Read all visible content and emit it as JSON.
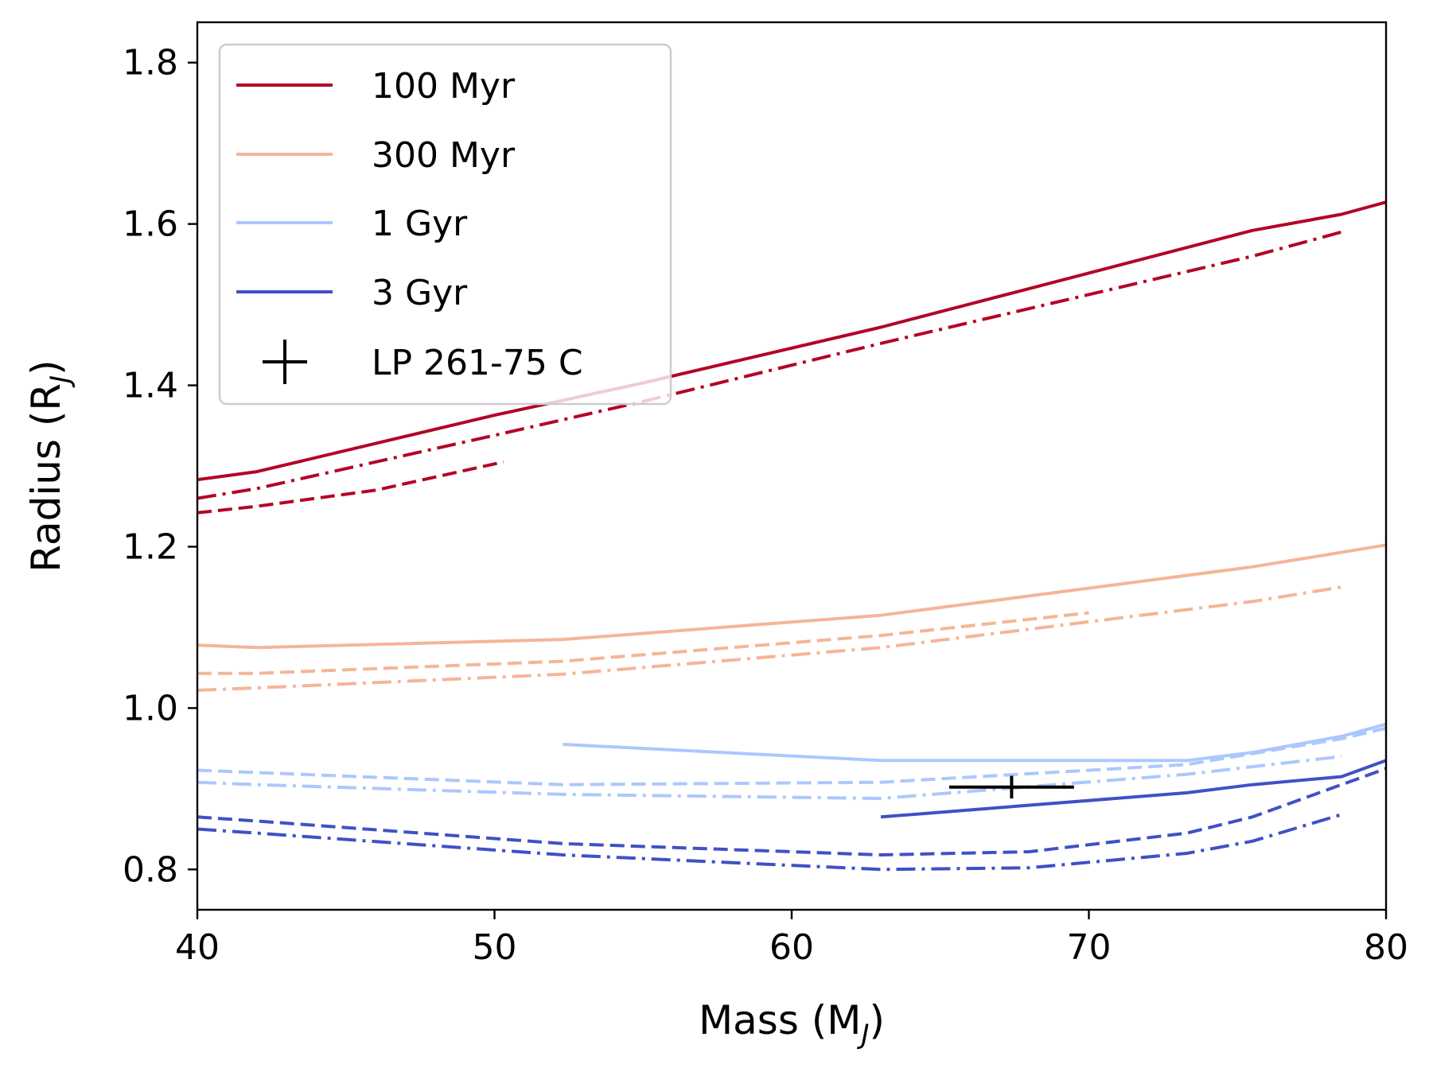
{
  "chart_data": {
    "type": "line",
    "title": "",
    "xlabel": "Mass (M",
    "xlabel_sub": "J",
    "xlabel_close": ")",
    "ylabel": "Radius (R",
    "ylabel_sub": "J",
    "ylabel_close": ")",
    "xlim": [
      40,
      80
    ],
    "ylim": [
      0.75,
      1.85
    ],
    "xticks": [
      40,
      50,
      60,
      70,
      80
    ],
    "xtick_labels": [
      "40",
      "50",
      "60",
      "70",
      "80"
    ],
    "yticks": [
      0.8,
      1.0,
      1.2,
      1.4,
      1.6,
      1.8
    ],
    "ytick_labels": [
      "0.8",
      "1.0",
      "1.2",
      "1.4",
      "1.6",
      "1.8"
    ],
    "grid": false,
    "legend": {
      "location": "upper-left",
      "entries": [
        {
          "label": "100 Myr",
          "color": "#b40426",
          "marker": "line"
        },
        {
          "label": "300 Myr",
          "color": "#f5b597",
          "marker": "line"
        },
        {
          "label": "1 Gyr",
          "color": "#abc8fd",
          "marker": "line"
        },
        {
          "label": "3 Gyr",
          "color": "#3f51c5",
          "marker": "line"
        },
        {
          "label": "LP 261-75 C",
          "color": "#000000",
          "marker": "errorbar"
        }
      ]
    },
    "series": [
      {
        "name": "100 Myr solid",
        "age": "100 Myr",
        "style": "solid",
        "color": "#b40426",
        "x": [
          40,
          42,
          50,
          55,
          63,
          75.5,
          78.5,
          80
        ],
        "y": [
          1.283,
          1.293,
          1.363,
          1.403,
          1.472,
          1.592,
          1.612,
          1.627
        ]
      },
      {
        "name": "100 Myr dash-dot",
        "age": "100 Myr",
        "style": "dashdot",
        "color": "#b40426",
        "x": [
          40,
          42,
          50,
          55,
          63,
          75.5,
          78.5
        ],
        "y": [
          1.26,
          1.272,
          1.338,
          1.38,
          1.452,
          1.56,
          1.59
        ]
      },
      {
        "name": "100 Myr dashed",
        "age": "100 Myr",
        "style": "dashed",
        "color": "#b40426",
        "x": [
          40,
          42,
          46,
          50.3
        ],
        "y": [
          1.242,
          1.25,
          1.27,
          1.305
        ]
      },
      {
        "name": "300 Myr solid",
        "age": "300 Myr",
        "style": "solid",
        "color": "#f5b597",
        "x": [
          40,
          42,
          52.3,
          63,
          75.5,
          80
        ],
        "y": [
          1.078,
          1.075,
          1.085,
          1.115,
          1.175,
          1.202
        ]
      },
      {
        "name": "300 Myr dashed",
        "age": "300 Myr",
        "style": "dashed",
        "color": "#f5b597",
        "x": [
          40,
          42,
          52.3,
          63,
          70
        ],
        "y": [
          1.043,
          1.043,
          1.058,
          1.09,
          1.118
        ]
      },
      {
        "name": "300 Myr dash-dot",
        "age": "300 Myr",
        "style": "dashdot",
        "color": "#f5b597",
        "x": [
          40,
          42,
          52.3,
          63,
          75.5,
          78.5
        ],
        "y": [
          1.022,
          1.025,
          1.042,
          1.075,
          1.132,
          1.15
        ]
      },
      {
        "name": "1 Gyr solid",
        "age": "1 Gyr",
        "style": "solid",
        "color": "#abc8fd",
        "x": [
          52.3,
          63,
          73.3,
          75.5,
          78.5,
          80
        ],
        "y": [
          0.955,
          0.935,
          0.935,
          0.945,
          0.965,
          0.98
        ]
      },
      {
        "name": "1 Gyr dashed",
        "age": "1 Gyr",
        "style": "dashed",
        "color": "#abc8fd",
        "x": [
          40,
          42,
          52.3,
          63,
          73.3,
          78.5,
          80
        ],
        "y": [
          0.923,
          0.92,
          0.905,
          0.908,
          0.93,
          0.962,
          0.975
        ]
      },
      {
        "name": "1 Gyr dash-dot",
        "age": "1 Gyr",
        "style": "dashdot",
        "color": "#abc8fd",
        "x": [
          40,
          42,
          52.3,
          63,
          73.3,
          78.5
        ],
        "y": [
          0.908,
          0.905,
          0.893,
          0.888,
          0.918,
          0.94
        ]
      },
      {
        "name": "3 Gyr solid",
        "age": "3 Gyr",
        "style": "solid",
        "color": "#3f51c5",
        "x": [
          63,
          73.3,
          75.5,
          78.5,
          80
        ],
        "y": [
          0.865,
          0.895,
          0.905,
          0.915,
          0.935
        ]
      },
      {
        "name": "3 Gyr dashed",
        "age": "3 Gyr",
        "style": "dashed",
        "color": "#3f51c5",
        "x": [
          40,
          42,
          52.3,
          63,
          68,
          73.3,
          75.5,
          78.5,
          80
        ],
        "y": [
          0.865,
          0.86,
          0.832,
          0.818,
          0.822,
          0.845,
          0.865,
          0.905,
          0.925
        ]
      },
      {
        "name": "3 Gyr dash-dot",
        "age": "3 Gyr",
        "style": "dashdot",
        "color": "#3f51c5",
        "x": [
          40,
          42,
          52.3,
          63,
          68,
          73.3,
          75.5,
          78.5
        ],
        "y": [
          0.85,
          0.845,
          0.818,
          0.8,
          0.802,
          0.82,
          0.835,
          0.868
        ]
      }
    ],
    "points": [
      {
        "name": "LP 261-75 C",
        "x": 67.4,
        "y": 0.902,
        "xerr": 2.1,
        "yerr": 0.014,
        "color": "#000000"
      }
    ]
  }
}
